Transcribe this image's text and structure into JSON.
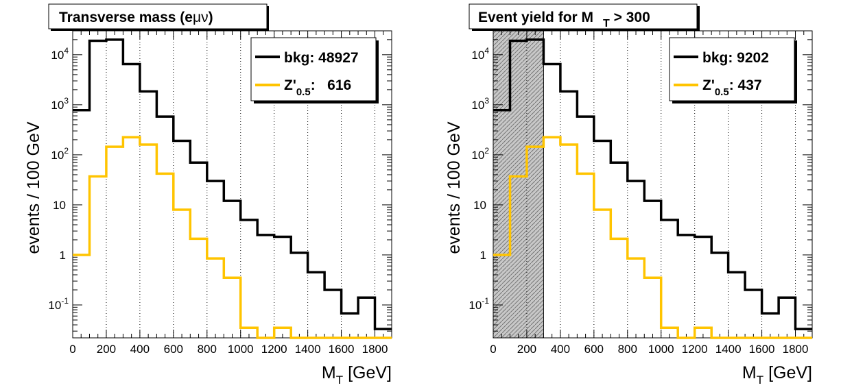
{
  "colors": {
    "bkg": "#000000",
    "zprime": "#ffc400",
    "shade": "#c8c8c8"
  },
  "chart_data": [
    {
      "type": "histogram",
      "title_main": "Transverse mass (e",
      "title_greek": "μν",
      "title_close": ")",
      "xlabel_main": "M",
      "xlabel_sub": "T",
      "xlabel_unit": " [GeV]",
      "ylabel": "events / 100 GeV",
      "xlim": [
        0,
        1900
      ],
      "ylim": [
        0.022,
        30000
      ],
      "yscale": "log",
      "grid": "vertical",
      "legend_position": "top-right",
      "x_ticks": [
        0,
        200,
        400,
        600,
        800,
        1000,
        1200,
        1400,
        1600,
        1800
      ],
      "x_tick_labels": [
        "0",
        "200",
        "400",
        "600",
        "800",
        "1000",
        "1200",
        "1400",
        "1600",
        "1800"
      ],
      "y_ticks": [
        {
          "value": 0.1,
          "base": "10",
          "exp": "-1"
        },
        {
          "value": 1,
          "base": "1",
          "exp": ""
        },
        {
          "value": 10,
          "base": "10",
          "exp": ""
        },
        {
          "value": 100,
          "base": "10",
          "exp": "2"
        },
        {
          "value": 1000,
          "base": "10",
          "exp": "3"
        },
        {
          "value": 10000,
          "base": "10",
          "exp": "4"
        }
      ],
      "bin_edges": [
        0,
        100,
        200,
        300,
        400,
        500,
        600,
        700,
        800,
        900,
        1000,
        1100,
        1200,
        1300,
        1400,
        1500,
        1600,
        1700,
        1800,
        1900
      ],
      "series": [
        {
          "name": "bkg",
          "legend_label": "bkg: 48927",
          "values": [
            780,
            19000,
            20000,
            6500,
            1850,
            580,
            190,
            70,
            30,
            12,
            5,
            2.5,
            2.3,
            1.1,
            0.45,
            0.2,
            0.068,
            0.14,
            0.033
          ]
        },
        {
          "name": "Z'",
          "legend_main": "Z'",
          "legend_sub": "0.5",
          "legend_value": ":   616",
          "values": [
            1,
            37,
            145,
            225,
            160,
            42,
            8,
            2.1,
            0.85,
            0.35,
            0.035,
            0.018,
            0.035,
            0.018,
            0.018,
            0.018,
            0.018,
            0.018,
            0.018
          ]
        }
      ]
    },
    {
      "type": "histogram",
      "title_main": "Event yield for M",
      "title_sub": "T",
      "title_close": " > 300",
      "xlabel_main": "M",
      "xlabel_sub": "T",
      "xlabel_unit": " [GeV]",
      "ylabel": "events / 100 GeV",
      "xlim": [
        0,
        1900
      ],
      "ylim": [
        0.022,
        30000
      ],
      "yscale": "log",
      "grid": "vertical",
      "legend_position": "top-right",
      "shaded_x_range": [
        0,
        300
      ],
      "x_ticks": [
        0,
        200,
        400,
        600,
        800,
        1000,
        1200,
        1400,
        1600,
        1800
      ],
      "x_tick_labels": [
        "0",
        "200",
        "400",
        "600",
        "800",
        "1000",
        "1200",
        "1400",
        "1600",
        "1800"
      ],
      "y_ticks": [
        {
          "value": 0.1,
          "base": "10",
          "exp": "-1"
        },
        {
          "value": 1,
          "base": "1",
          "exp": ""
        },
        {
          "value": 10,
          "base": "10",
          "exp": ""
        },
        {
          "value": 100,
          "base": "10",
          "exp": "2"
        },
        {
          "value": 1000,
          "base": "10",
          "exp": "3"
        },
        {
          "value": 10000,
          "base": "10",
          "exp": "4"
        }
      ],
      "bin_edges": [
        0,
        100,
        200,
        300,
        400,
        500,
        600,
        700,
        800,
        900,
        1000,
        1100,
        1200,
        1300,
        1400,
        1500,
        1600,
        1700,
        1800,
        1900
      ],
      "series": [
        {
          "name": "bkg",
          "legend_label": "bkg: 9202",
          "values": [
            780,
            19000,
            20000,
            6500,
            1850,
            580,
            190,
            70,
            30,
            12,
            5,
            2.5,
            2.3,
            1.1,
            0.45,
            0.2,
            0.068,
            0.14,
            0.033
          ]
        },
        {
          "name": "Z'",
          "legend_main": "Z'",
          "legend_sub": "0.5",
          "legend_value": ": 437",
          "values": [
            1,
            37,
            145,
            225,
            160,
            42,
            8,
            2.1,
            0.85,
            0.35,
            0.035,
            0.018,
            0.035,
            0.018,
            0.018,
            0.018,
            0.018,
            0.018,
            0.018
          ]
        }
      ]
    }
  ]
}
